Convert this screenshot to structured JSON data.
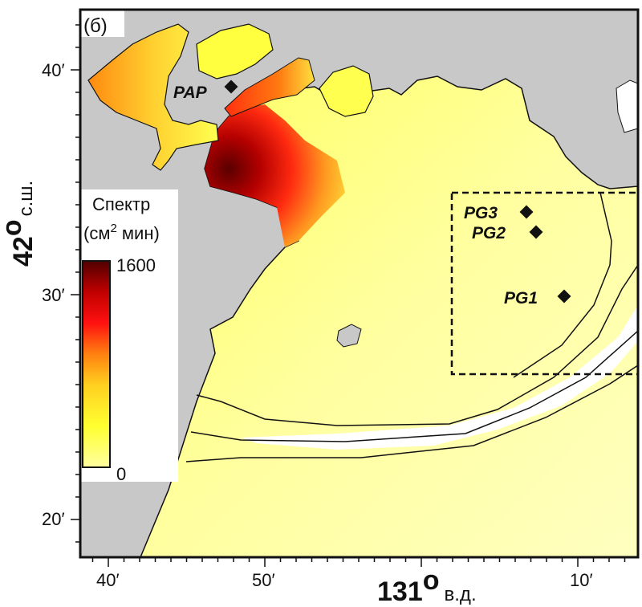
{
  "map": {
    "panel_label": "(б)",
    "x_axis": {
      "tick_labels": [
        "40′",
        "50′",
        "10′"
      ],
      "title_number": "131",
      "title_degree": "o",
      "title_unit": "в.д."
    },
    "y_axis": {
      "tick_labels": [
        "40′",
        "30′",
        "20′"
      ],
      "title_number": "42",
      "title_degree": "o",
      "title_unit": "с.ш."
    },
    "colorbar": {
      "title_line1": "Спектр",
      "title_line2_prefix": "(см",
      "title_line2_sup": "2",
      "title_line2_suffix": " мин)",
      "max_label": "1600",
      "min_label": "0",
      "colors": [
        "#ffffa0",
        "#ffff30",
        "#ffd020",
        "#ff8010",
        "#ff1010",
        "#c00000",
        "#500000"
      ]
    },
    "stations": [
      {
        "id": "PAP",
        "label": "PAP"
      },
      {
        "id": "PG3",
        "label": "PG3"
      },
      {
        "id": "PG2",
        "label": "PG2"
      },
      {
        "id": "PG1",
        "label": "PG1"
      }
    ],
    "colors": {
      "land": "#c8c8c8",
      "sea_low": "#ffffb0",
      "sea_high": "#5a0000",
      "frame": "#111111"
    }
  }
}
